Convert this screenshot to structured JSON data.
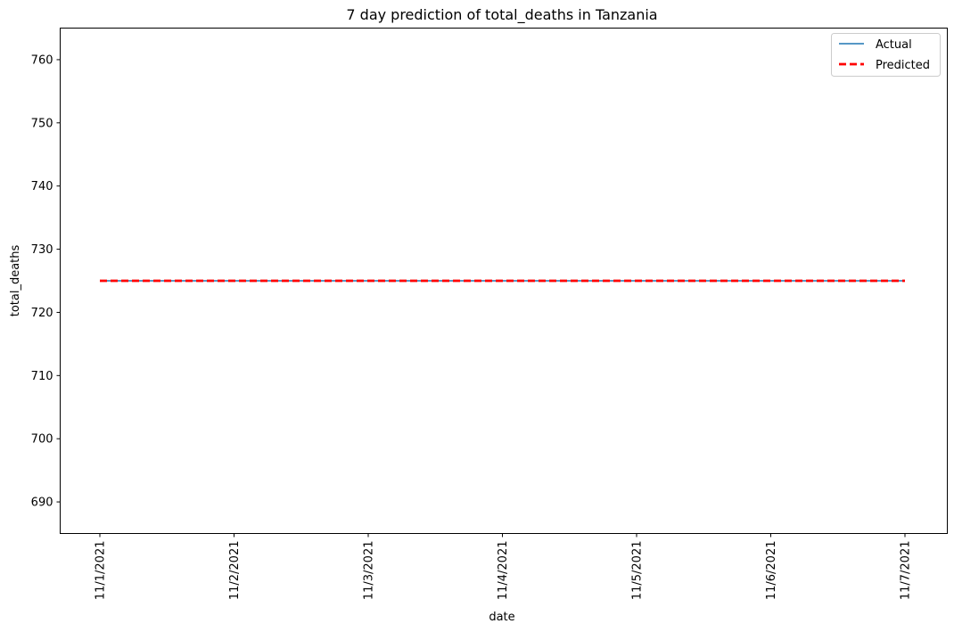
{
  "chart_data": {
    "type": "line",
    "title": "7 day prediction of total_deaths in Tanzania",
    "xlabel": "date",
    "ylabel": "total_deaths",
    "categories": [
      "11/1/2021",
      "11/2/2021",
      "11/3/2021",
      "11/4/2021",
      "11/5/2021",
      "11/6/2021",
      "11/7/2021"
    ],
    "ylim": [
      685,
      765
    ],
    "yticks": [
      690,
      700,
      710,
      720,
      730,
      740,
      750,
      760
    ],
    "grid": false,
    "legend_position": "top-right",
    "series": [
      {
        "name": "Actual",
        "values": [
          725,
          725,
          725,
          725,
          725,
          725,
          725
        ],
        "color": "#1f77b4",
        "style": "solid"
      },
      {
        "name": "Predicted",
        "values": [
          725,
          725,
          725,
          725,
          725,
          725,
          725
        ],
        "color": "#ff0000",
        "style": "dashed"
      }
    ]
  }
}
